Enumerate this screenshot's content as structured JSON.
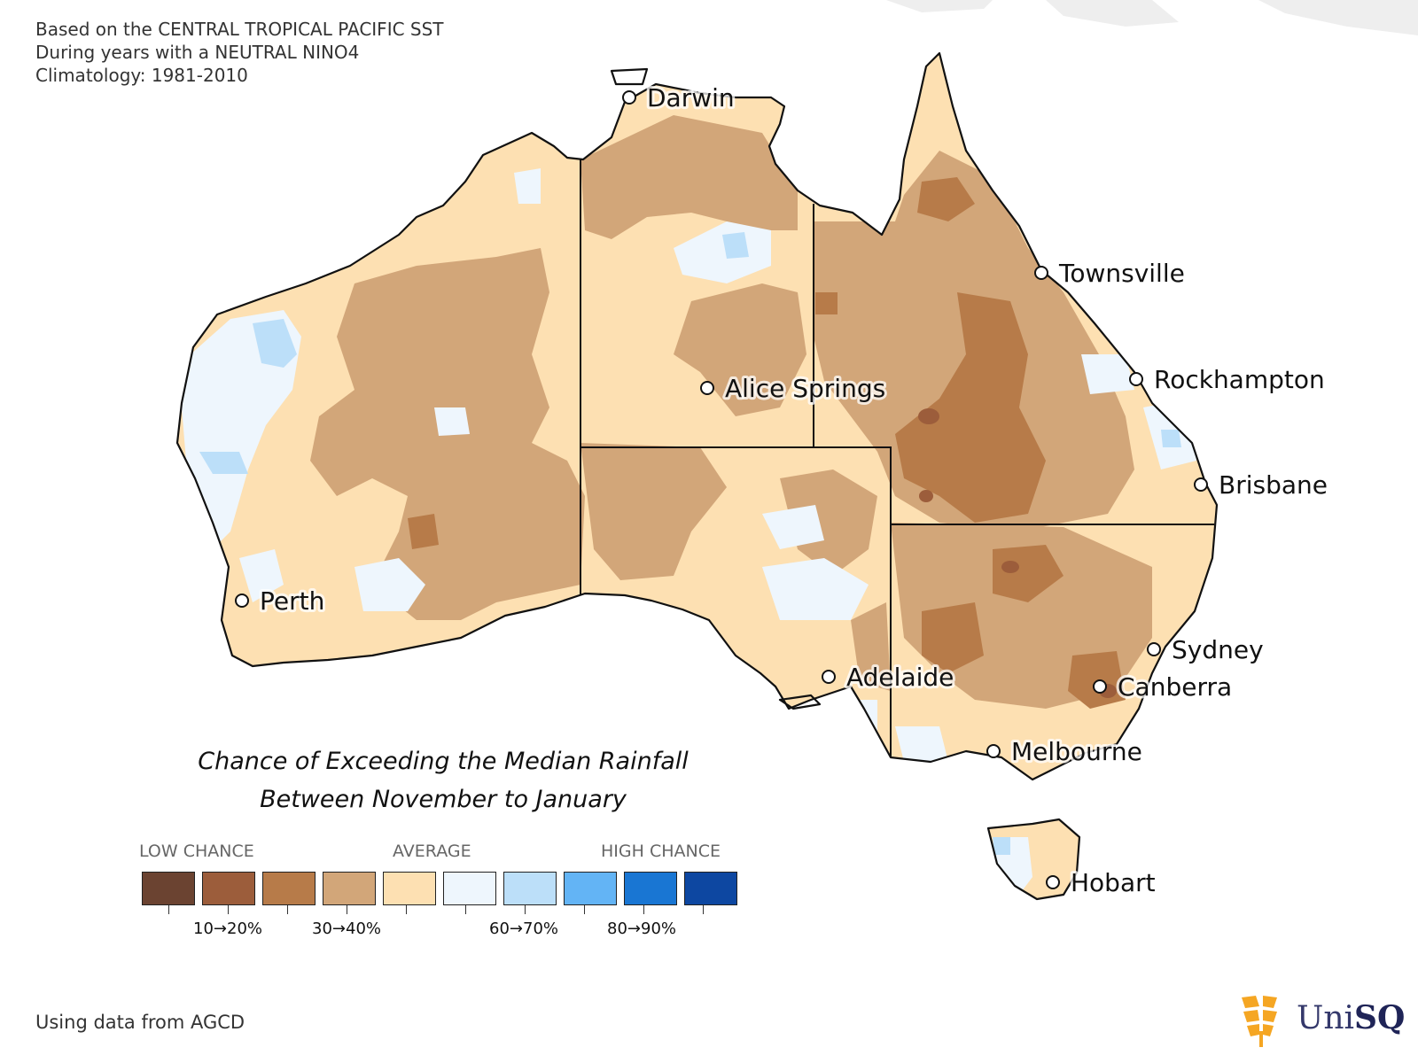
{
  "header": {
    "line1": "Based on the CENTRAL TROPICAL PACIFIC SST",
    "line2": "During years with a NEUTRAL NINO4",
    "line3": "Climatology: 1981-2010"
  },
  "cities": [
    {
      "name": "Darwin"
    },
    {
      "name": "Townsville"
    },
    {
      "name": "Rockhampton"
    },
    {
      "name": "Alice Springs"
    },
    {
      "name": "Brisbane"
    },
    {
      "name": "Perth"
    },
    {
      "name": "Sydney"
    },
    {
      "name": "Adelaide"
    },
    {
      "name": "Canberra"
    },
    {
      "name": "Melbourne"
    },
    {
      "name": "Hobart"
    }
  ],
  "title": {
    "line1": "Chance of Exceeding the Median Rainfall",
    "line2": "Between November to January"
  },
  "legend": {
    "low": "LOW CHANCE",
    "average": "AVERAGE",
    "high": "HIGH CHANCE",
    "colors": [
      "#6b4331",
      "#9c5d3b",
      "#b77b49",
      "#d2a679",
      "#fde0b2",
      "#eef6fd",
      "#bcdff9",
      "#63b4f5",
      "#1976d3",
      "#0d47a1"
    ],
    "tick_labels": [
      "10→20%",
      "30→40%",
      "60→70%",
      "80→90%"
    ]
  },
  "footer": "Using data from AGCD",
  "logo": {
    "text_a": "Uni",
    "text_b": "SQ"
  }
}
